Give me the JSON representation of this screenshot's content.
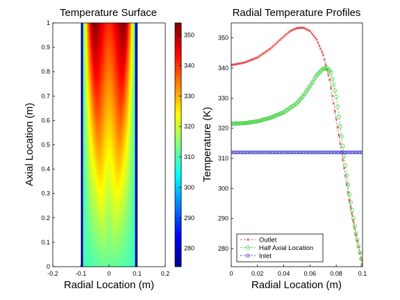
{
  "chart_data": [
    {
      "type": "heatmap",
      "title": "Temperature Surface",
      "xlabel": "Radial Location (m)",
      "ylabel": "Axial Location (m)",
      "xlim": [
        -0.2,
        0.2
      ],
      "ylim": [
        0,
        1
      ],
      "x_ticks": [
        "-0.2",
        "-0.1",
        "0",
        "0.1",
        "0.2"
      ],
      "y_ticks": [
        "0",
        "0.1",
        "0.2",
        "0.3",
        "0.4",
        "0.5",
        "0.6",
        "0.7",
        "0.8",
        "0.9",
        "1"
      ],
      "field_extent_x": [
        -0.1,
        0.1
      ],
      "colorbar": {
        "range": [
          274,
          354
        ],
        "ticks": [
          "280",
          "290",
          "300",
          "310",
          "320",
          "330",
          "340",
          "350"
        ],
        "colormap": "jet"
      }
    },
    {
      "type": "line",
      "title": "Radial Temperature Profiles",
      "xlabel": "Radial Location (m)",
      "ylabel": "Temperature (K)",
      "xlim": [
        0,
        0.1
      ],
      "ylim": [
        274,
        355
      ],
      "x_ticks": [
        "0",
        "0.02",
        "0.04",
        "0.06",
        "0.08",
        "0.1"
      ],
      "y_ticks": [
        "280",
        "290",
        "300",
        "310",
        "320",
        "330",
        "340",
        "350"
      ],
      "legend_position": "bottom-left",
      "series": [
        {
          "name": "Outlet",
          "color": "#d93030",
          "marker": "x",
          "x": [
            0,
            0.01,
            0.02,
            0.03,
            0.04,
            0.045,
            0.05,
            0.055,
            0.06,
            0.065,
            0.07,
            0.075,
            0.08,
            0.085,
            0.09,
            0.095,
            0.1
          ],
          "y": [
            341,
            341.8,
            343.5,
            346.5,
            350.5,
            352.3,
            353.3,
            353.4,
            352.3,
            349.5,
            344.5,
            336,
            323,
            309.5,
            296,
            284.5,
            274.5
          ]
        },
        {
          "name": "Half Axial Location",
          "color": "#33cc33",
          "marker": "o",
          "x": [
            0,
            0.01,
            0.02,
            0.03,
            0.04,
            0.05,
            0.055,
            0.06,
            0.065,
            0.07,
            0.073,
            0.076,
            0.08,
            0.085,
            0.09,
            0.095,
            0.1
          ],
          "y": [
            321.5,
            321.7,
            322.3,
            323.5,
            325.3,
            328.3,
            330.8,
            334,
            337.5,
            339.8,
            340,
            338.5,
            330.5,
            314,
            298,
            285,
            274.5
          ]
        },
        {
          "name": "Inlet",
          "color": "#3333cc",
          "marker": "s",
          "x": [
            0,
            0.1
          ],
          "y": [
            312,
            312
          ]
        }
      ]
    }
  ]
}
